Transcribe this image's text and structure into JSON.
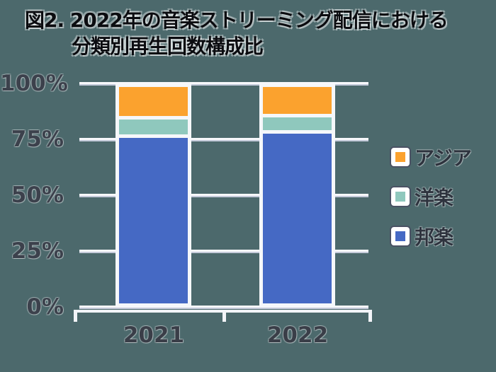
{
  "figure": {
    "title_line1": "図2. 2022年の音楽ストリーミング配信における",
    "title_line2": "分類別再生回数構成比"
  },
  "chart_data": {
    "type": "bar",
    "stacked": true,
    "title": "図2. 2022年の音楽ストリーミング配信における分類別再生回数構成比",
    "categories": [
      "2021",
      "2022"
    ],
    "series": [
      {
        "name": "アジア",
        "color": "#FBA22E",
        "values": [
          14,
          13
        ]
      },
      {
        "name": "洋楽",
        "color": "#8FC8BD",
        "values": [
          7,
          6
        ]
      },
      {
        "name": "邦楽",
        "color": "#4569C4",
        "values": [
          79,
          81
        ]
      }
    ],
    "unit": "%",
    "ylim": [
      0,
      100
    ],
    "ytick_labels": [
      "100%",
      "75%",
      "50%",
      "25%",
      "0%"
    ],
    "grid": true,
    "legend_position": "right",
    "background_color": "#4C696C",
    "gridline_color": "#FFFFFF"
  }
}
